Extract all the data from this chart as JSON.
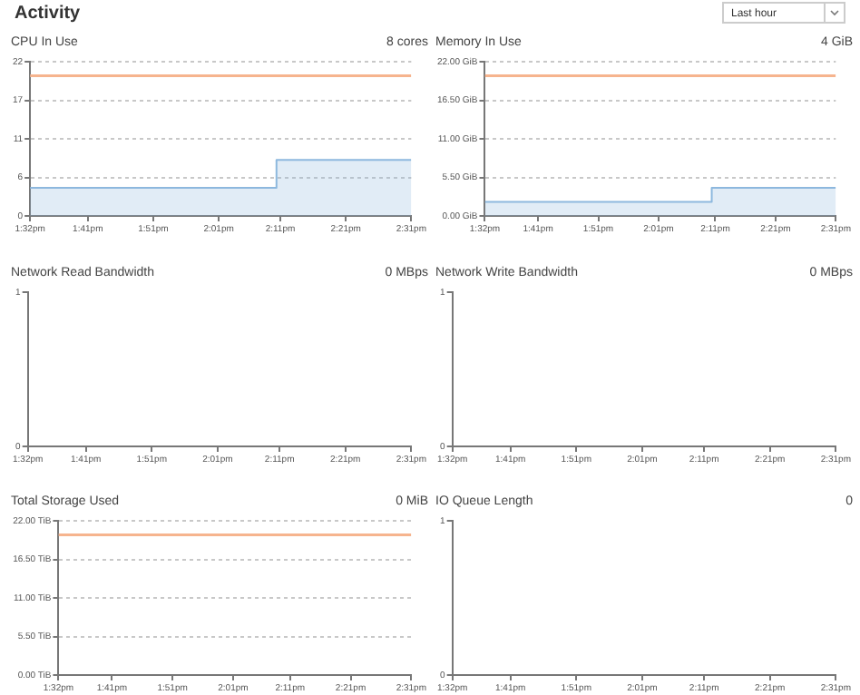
{
  "chart_data": [
    {
      "type": "line",
      "title": "CPU In Use",
      "subtitle": "8 cores",
      "annotations": [
        "Activity",
        "Last hour"
      ],
      "xlim": [
        13.53,
        14.52
      ],
      "xticks": [
        {
          "value": 13.53,
          "label": "1:32pm"
        },
        {
          "value": 13.68,
          "label": "1:41pm"
        },
        {
          "value": 13.85,
          "label": "1:51pm"
        },
        {
          "value": 14.02,
          "label": "2:01pm"
        },
        {
          "value": 14.18,
          "label": "2:11pm"
        },
        {
          "value": 14.35,
          "label": "2:21pm"
        },
        {
          "value": 14.52,
          "label": "2:31pm"
        }
      ],
      "ylim": [
        0,
        22
      ],
      "yticks": [
        0,
        {
          "value": 5.5,
          "label": "6"
        },
        11,
        {
          "value": 16.5,
          "label": "17"
        },
        22
      ],
      "grid": "y",
      "series": [
        {
          "type": "line",
          "color": "#f6b48e",
          "x": [
            13.53,
            14.52
          ],
          "values": [
            20,
            20
          ]
        },
        {
          "type": "area",
          "color": "#8db8de",
          "x": [
            13.53,
            14.17,
            14.17,
            14.52
          ],
          "values": [
            4,
            4,
            8,
            8
          ]
        }
      ]
    },
    {
      "type": "line",
      "title": "Memory In Use",
      "subtitle": "4 GiB",
      "xlim": [
        13.53,
        14.52
      ],
      "xticks": [
        {
          "value": 13.53,
          "label": "1:32pm"
        },
        {
          "value": 13.68,
          "label": "1:41pm"
        },
        {
          "value": 13.85,
          "label": "1:51pm"
        },
        {
          "value": 14.02,
          "label": "2:01pm"
        },
        {
          "value": 14.18,
          "label": "2:11pm"
        },
        {
          "value": 14.35,
          "label": "2:21pm"
        },
        {
          "value": 14.52,
          "label": "2:31pm"
        }
      ],
      "ylim": [
        0,
        22
      ],
      "yticks": [
        {
          "value": 0,
          "label": "0.00 GiB"
        },
        {
          "value": 5.5,
          "label": "5.50 GiB"
        },
        {
          "value": 11,
          "label": "11.00 GiB"
        },
        {
          "value": 16.5,
          "label": "16.50 GiB"
        },
        {
          "value": 22,
          "label": "22.00 GiB"
        }
      ],
      "grid": "y",
      "series": [
        {
          "type": "line",
          "color": "#f6b48e",
          "x": [
            13.53,
            14.52
          ],
          "values": [
            20,
            20
          ]
        },
        {
          "type": "area",
          "color": "#8db8de",
          "x": [
            13.53,
            14.17,
            14.17,
            14.52
          ],
          "values": [
            2,
            2,
            4,
            4
          ]
        }
      ]
    },
    {
      "type": "line",
      "title": "Network Read Bandwidth",
      "subtitle": "0 MBps",
      "xlim": [
        13.53,
        14.52
      ],
      "xticks": [
        {
          "value": 13.53,
          "label": "1:32pm"
        },
        {
          "value": 13.68,
          "label": "1:41pm"
        },
        {
          "value": 13.85,
          "label": "1:51pm"
        },
        {
          "value": 14.02,
          "label": "2:01pm"
        },
        {
          "value": 14.18,
          "label": "2:11pm"
        },
        {
          "value": 14.35,
          "label": "2:21pm"
        },
        {
          "value": 14.52,
          "label": "2:31pm"
        }
      ],
      "ylim": [
        0,
        1
      ],
      "yticks": [
        0,
        1
      ]
    },
    {
      "type": "line",
      "title": "Network Write Bandwidth",
      "subtitle": "0 MBps",
      "xlim": [
        13.53,
        14.52
      ],
      "xticks": [
        {
          "value": 13.53,
          "label": "1:32pm"
        },
        {
          "value": 13.68,
          "label": "1:41pm"
        },
        {
          "value": 13.85,
          "label": "1:51pm"
        },
        {
          "value": 14.02,
          "label": "2:01pm"
        },
        {
          "value": 14.18,
          "label": "2:11pm"
        },
        {
          "value": 14.35,
          "label": "2:21pm"
        },
        {
          "value": 14.52,
          "label": "2:31pm"
        }
      ],
      "ylim": [
        0,
        1
      ],
      "yticks": [
        0,
        1
      ]
    },
    {
      "type": "line",
      "title": "Total Storage Used",
      "subtitle": "0 MiB",
      "xlim": [
        13.53,
        14.52
      ],
      "xticks": [
        {
          "value": 13.53,
          "label": "1:32pm"
        },
        {
          "value": 13.68,
          "label": "1:41pm"
        },
        {
          "value": 13.85,
          "label": "1:51pm"
        },
        {
          "value": 14.02,
          "label": "2:01pm"
        },
        {
          "value": 14.18,
          "label": "2:11pm"
        },
        {
          "value": 14.35,
          "label": "2:21pm"
        },
        {
          "value": 14.52,
          "label": "2:31pm"
        }
      ],
      "ylim": [
        0,
        22
      ],
      "yticks": [
        {
          "value": 0,
          "label": "0.00 TiB"
        },
        {
          "value": 5.5,
          "label": "5.50 TiB"
        },
        {
          "value": 11,
          "label": "11.00 TiB"
        },
        {
          "value": 16.5,
          "label": "16.50 TiB"
        },
        {
          "value": 22,
          "label": "22.00 TiB"
        }
      ],
      "grid": "y",
      "series": [
        {
          "type": "line",
          "color": "#f6b48e",
          "x": [
            13.53,
            14.52
          ],
          "values": [
            20,
            20
          ]
        }
      ]
    },
    {
      "type": "line",
      "title": "IO Queue Length",
      "subtitle": "0",
      "xlim": [
        13.53,
        14.52
      ],
      "xticks": [
        {
          "value": 13.53,
          "label": "1:32pm"
        },
        {
          "value": 13.68,
          "label": "1:41pm"
        },
        {
          "value": 13.85,
          "label": "1:51pm"
        },
        {
          "value": 14.02,
          "label": "2:01pm"
        },
        {
          "value": 14.18,
          "label": "2:11pm"
        },
        {
          "value": 14.35,
          "label": "2:21pm"
        },
        {
          "value": 14.52,
          "label": "2:31pm"
        }
      ],
      "ylim": [
        0,
        1
      ],
      "yticks": [
        0,
        1
      ]
    }
  ]
}
